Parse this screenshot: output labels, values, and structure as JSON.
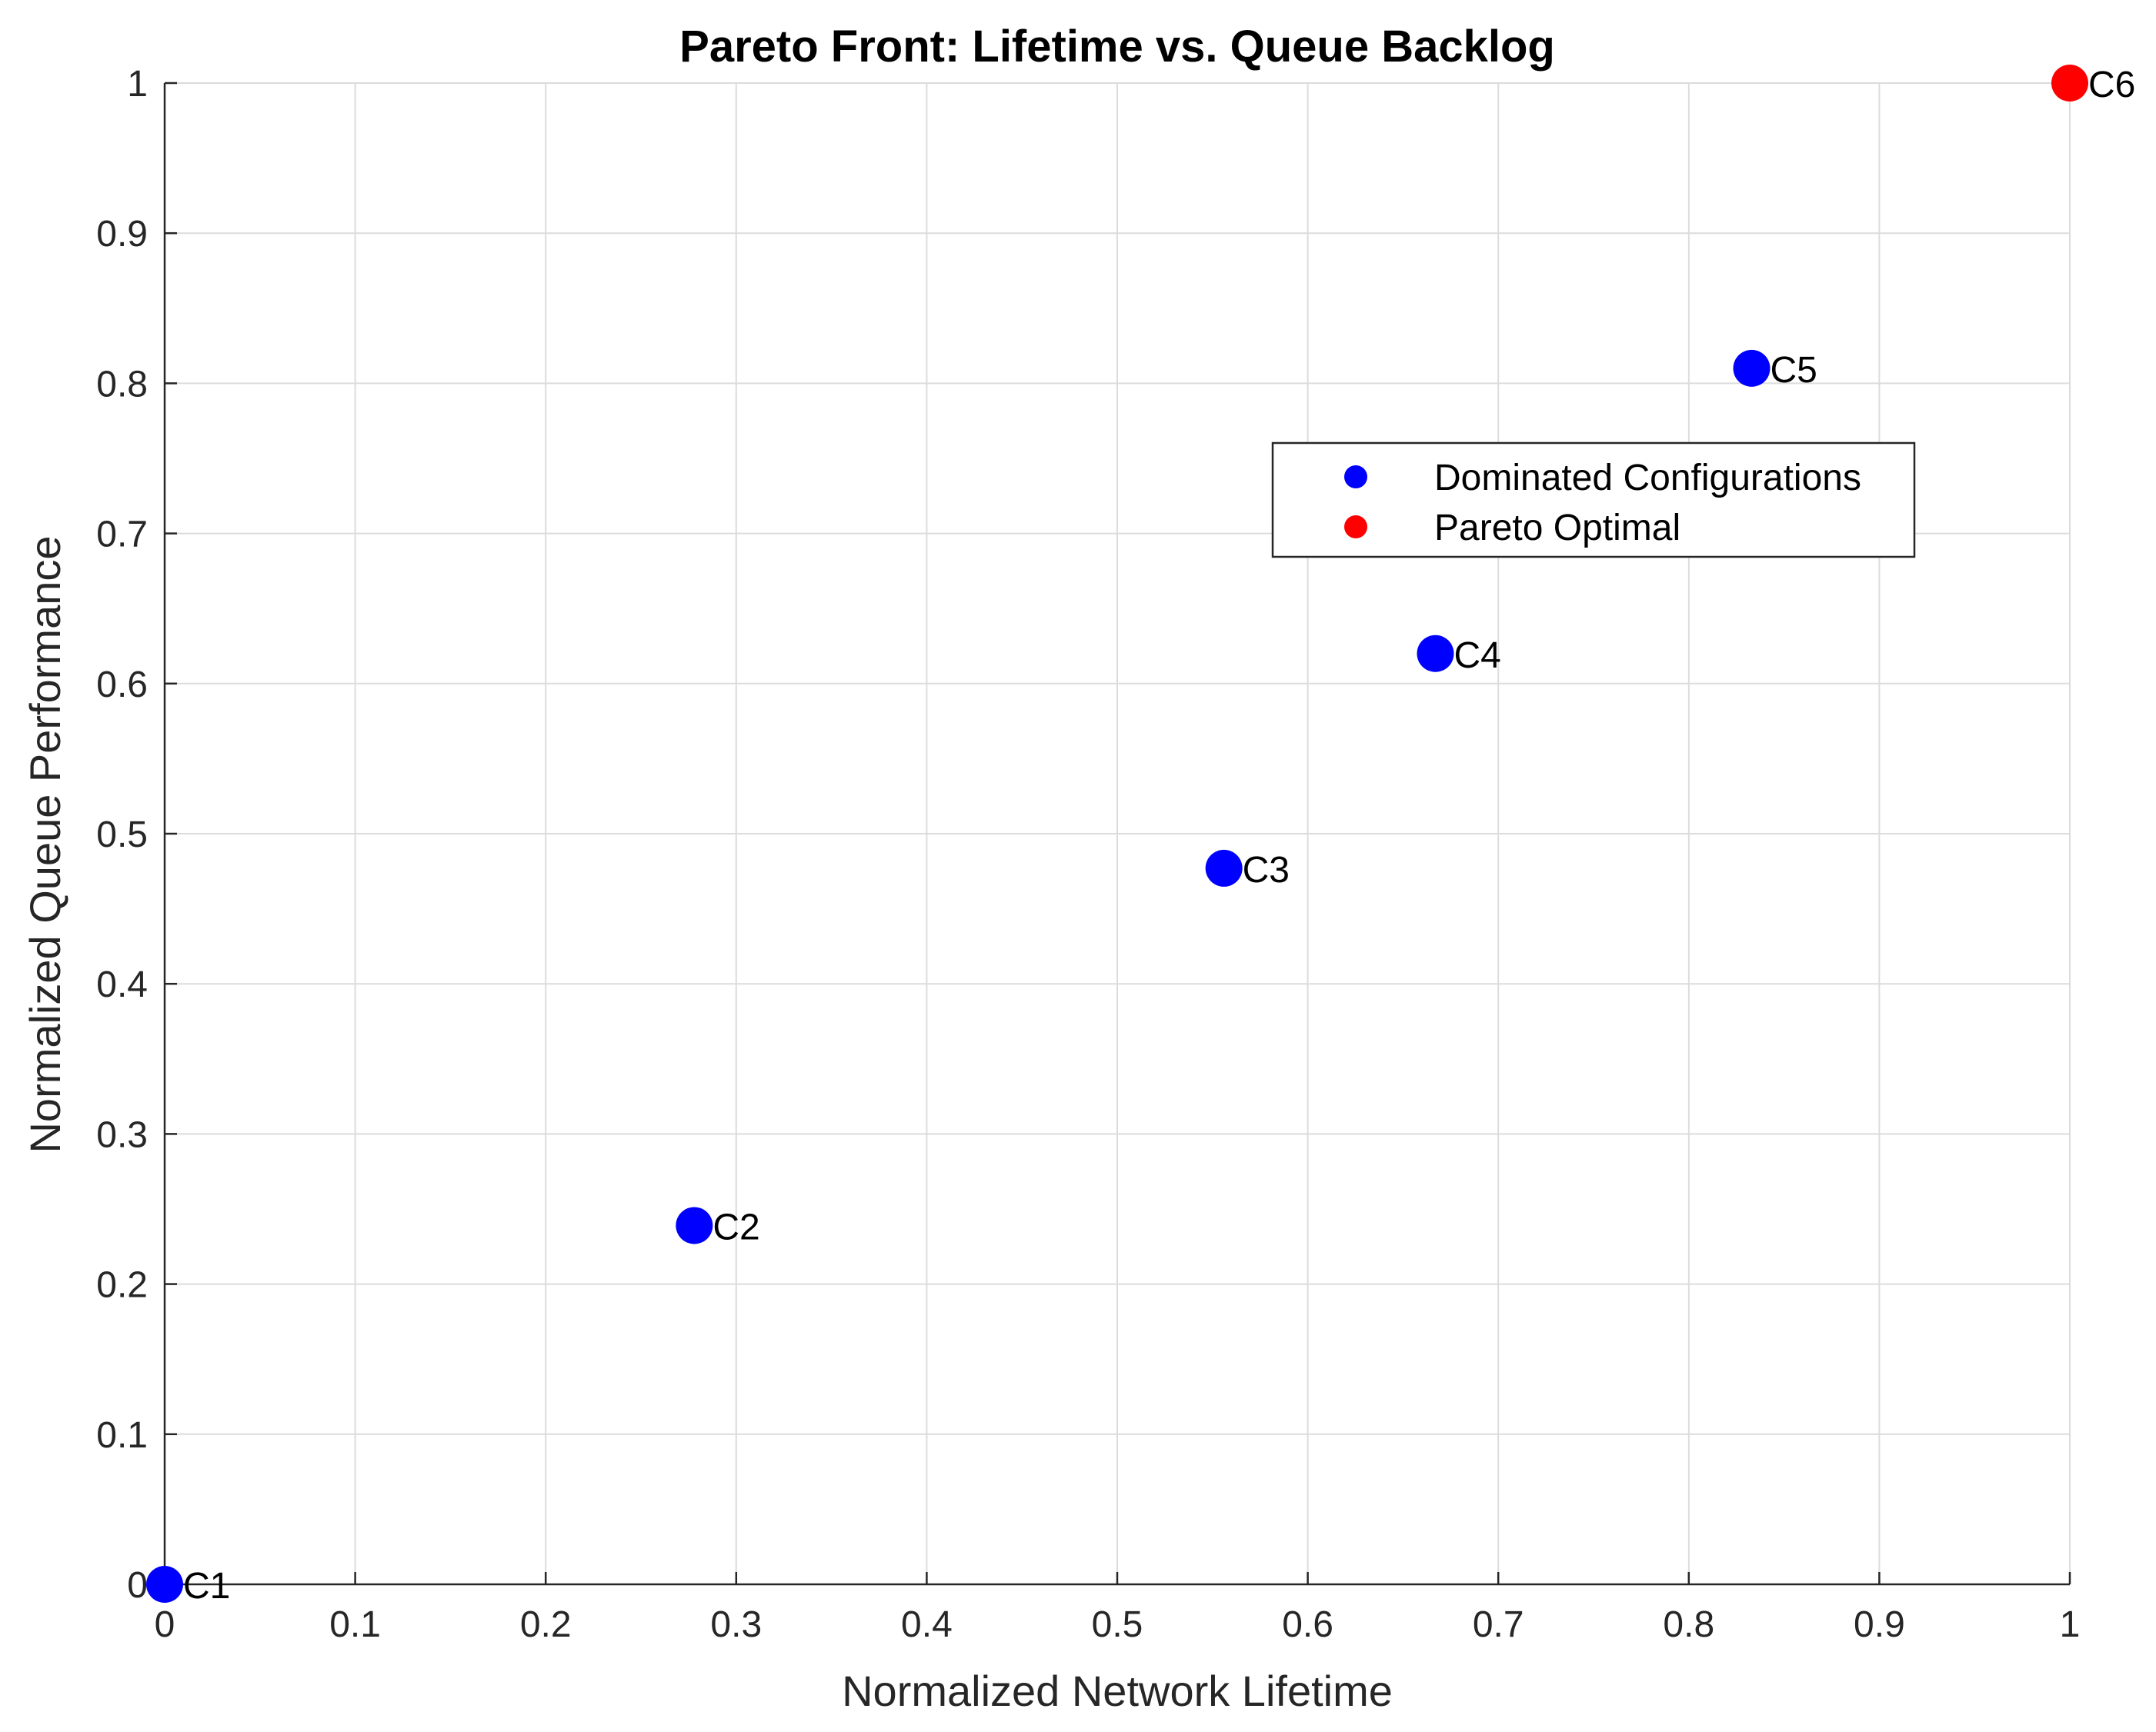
{
  "chart_data": {
    "type": "scatter",
    "title": "Pareto Front: Lifetime vs. Queue Backlog",
    "xlabel": "Normalized Network Lifetime",
    "ylabel": "Normalized Queue Performance",
    "xlim": [
      0,
      1
    ],
    "ylim": [
      0,
      1
    ],
    "xticks": [
      "0",
      "0.1",
      "0.2",
      "0.3",
      "0.4",
      "0.5",
      "0.6",
      "0.7",
      "0.8",
      "0.9",
      "1"
    ],
    "yticks": [
      "0",
      "0.1",
      "0.2",
      "0.3",
      "0.4",
      "0.5",
      "0.6",
      "0.7",
      "0.8",
      "0.9",
      "1"
    ],
    "grid": true,
    "legend_position": "upper-right-center",
    "series": [
      {
        "name": "Dominated Configurations",
        "color": "#0000ff",
        "points": [
          {
            "label": "C1",
            "x": 0.0,
            "y": 0.0
          },
          {
            "label": "C2",
            "x": 0.278,
            "y": 0.239
          },
          {
            "label": "C3",
            "x": 0.556,
            "y": 0.477
          },
          {
            "label": "C4",
            "x": 0.667,
            "y": 0.62
          },
          {
            "label": "C5",
            "x": 0.833,
            "y": 0.81
          }
        ]
      },
      {
        "name": "Pareto Optimal",
        "color": "#ff0000",
        "points": [
          {
            "label": "C6",
            "x": 1.0,
            "y": 1.0
          }
        ]
      }
    ]
  }
}
